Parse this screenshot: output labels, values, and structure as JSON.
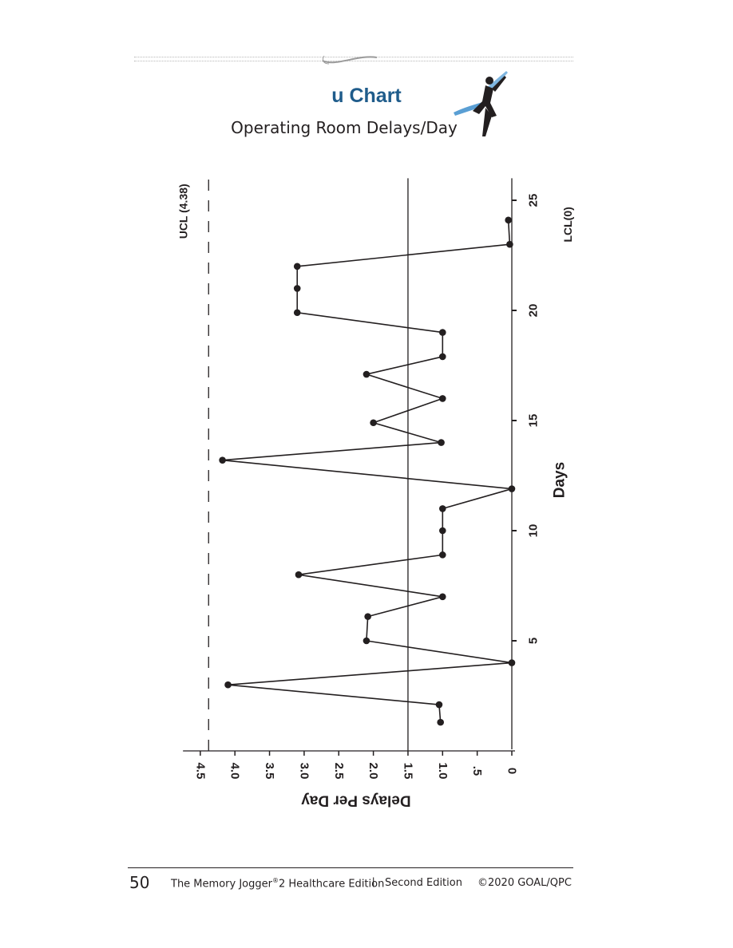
{
  "header": {
    "title": "u Chart",
    "subtitle": "Operating Room Delays/Day"
  },
  "footer": {
    "page_number": "50",
    "book_title": "The Memory Jogger",
    "book_title_sup": "®",
    "book_title_suffix": "2 Healthcare Edition",
    "separator": "|",
    "edition": "Second Edition",
    "copyright": "©2020 GOAL/QPC"
  },
  "chart_data": {
    "type": "line",
    "orientation": "rotated-90",
    "xlabel": "Days",
    "ylabel": "Delays Per Day",
    "x_ticks": [
      5,
      10,
      15,
      20,
      25
    ],
    "y_ticks": [
      "0",
      ".5",
      "1.0",
      "1.5",
      "2.0",
      "2.5",
      "3.0",
      "3.5",
      "4.0",
      "4.5"
    ],
    "y_tick_values": [
      0,
      0.5,
      1.0,
      1.5,
      2.0,
      2.5,
      3.0,
      3.5,
      4.0,
      4.5
    ],
    "xlim": [
      0,
      26
    ],
    "ylim": [
      0,
      4.75
    ],
    "control_limits": {
      "ucl": {
        "label": "UCL (4.38)",
        "value": 4.38
      },
      "center": {
        "value": 1.5
      },
      "lcl": {
        "label": "LCL(0)",
        "value": 0
      }
    },
    "points": [
      {
        "x": 1.3,
        "y": 1.03
      },
      {
        "x": 2.1,
        "y": 1.05
      },
      {
        "x": 3.0,
        "y": 4.1
      },
      {
        "x": 4.0,
        "y": 0.0
      },
      {
        "x": 5.0,
        "y": 2.1
      },
      {
        "x": 6.1,
        "y": 2.08
      },
      {
        "x": 7.0,
        "y": 1.0
      },
      {
        "x": 8.0,
        "y": 3.08
      },
      {
        "x": 8.9,
        "y": 1.0
      },
      {
        "x": 10.0,
        "y": 1.0
      },
      {
        "x": 11.0,
        "y": 1.0
      },
      {
        "x": 11.9,
        "y": 0.0
      },
      {
        "x": 13.2,
        "y": 4.18
      },
      {
        "x": 14.0,
        "y": 1.02
      },
      {
        "x": 14.9,
        "y": 2.0
      },
      {
        "x": 16.0,
        "y": 1.0
      },
      {
        "x": 17.1,
        "y": 2.1
      },
      {
        "x": 17.9,
        "y": 1.0
      },
      {
        "x": 19.0,
        "y": 1.0
      },
      {
        "x": 19.9,
        "y": 3.1
      },
      {
        "x": 21.0,
        "y": 3.1
      },
      {
        "x": 22.0,
        "y": 3.1
      },
      {
        "x": 23.0,
        "y": 0.03
      },
      {
        "x": 24.1,
        "y": 0.05
      }
    ]
  },
  "colors": {
    "title": "#1f5c8b",
    "ink": "#231f20",
    "runner_accent": "#5a9fd4"
  }
}
